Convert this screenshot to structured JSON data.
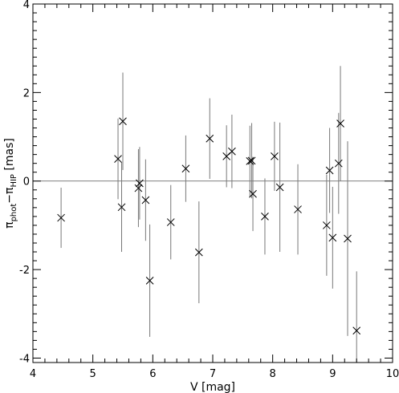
{
  "chart_data": {
    "type": "scatter",
    "xlabel": "V [mag]",
    "ylabel": {
      "base": "π",
      "sub1": "phot",
      "minus": "−π",
      "sub2": "HIP",
      "unit": " [mas]"
    },
    "xlim": [
      4,
      10
    ],
    "ylim": [
      -4.1,
      4.0
    ],
    "xticks": [
      4,
      5,
      6,
      7,
      8,
      9,
      10
    ],
    "yticks": [
      -4,
      -2,
      0,
      2,
      4
    ],
    "reference_line_y": 0,
    "grid": false,
    "marker": "x",
    "points": [
      {
        "x": 4.47,
        "y": -0.83,
        "err": 0.68
      },
      {
        "x": 5.42,
        "y": 0.5,
        "err": 0.91
      },
      {
        "x": 5.48,
        "y": -0.59,
        "err": 1.01
      },
      {
        "x": 5.5,
        "y": 1.35,
        "err": 1.1
      },
      {
        "x": 5.76,
        "y": -0.16,
        "err": 0.88
      },
      {
        "x": 5.78,
        "y": -0.05,
        "err": 0.82
      },
      {
        "x": 5.88,
        "y": -0.43,
        "err": 0.92
      },
      {
        "x": 5.95,
        "y": -2.25,
        "err": 1.27
      },
      {
        "x": 6.3,
        "y": -0.93,
        "err": 0.84
      },
      {
        "x": 6.55,
        "y": 0.28,
        "err": 0.75
      },
      {
        "x": 6.77,
        "y": -1.61,
        "err": 1.15
      },
      {
        "x": 6.95,
        "y": 0.96,
        "err": 0.91
      },
      {
        "x": 7.23,
        "y": 0.56,
        "err": 0.7
      },
      {
        "x": 7.32,
        "y": 0.67,
        "err": 0.83
      },
      {
        "x": 7.62,
        "y": 0.45,
        "err": 0.8
      },
      {
        "x": 7.65,
        "y": 0.46,
        "err": 0.85
      },
      {
        "x": 7.67,
        "y": -0.29,
        "err": 0.84
      },
      {
        "x": 7.87,
        "y": -0.8,
        "err": 0.86
      },
      {
        "x": 8.03,
        "y": 0.56,
        "err": 0.78
      },
      {
        "x": 8.12,
        "y": -0.14,
        "err": 1.46
      },
      {
        "x": 8.42,
        "y": -0.64,
        "err": 1.02
      },
      {
        "x": 8.9,
        "y": -1.0,
        "err": 1.14
      },
      {
        "x": 8.95,
        "y": 0.24,
        "err": 0.96
      },
      {
        "x": 9.0,
        "y": -1.28,
        "err": 1.15
      },
      {
        "x": 9.1,
        "y": 0.4,
        "err": 1.14
      },
      {
        "x": 9.13,
        "y": 1.3,
        "err": 1.3
      },
      {
        "x": 9.25,
        "y": -1.3,
        "err": 2.2
      },
      {
        "x": 9.4,
        "y": -3.38,
        "err": 1.34
      }
    ]
  }
}
